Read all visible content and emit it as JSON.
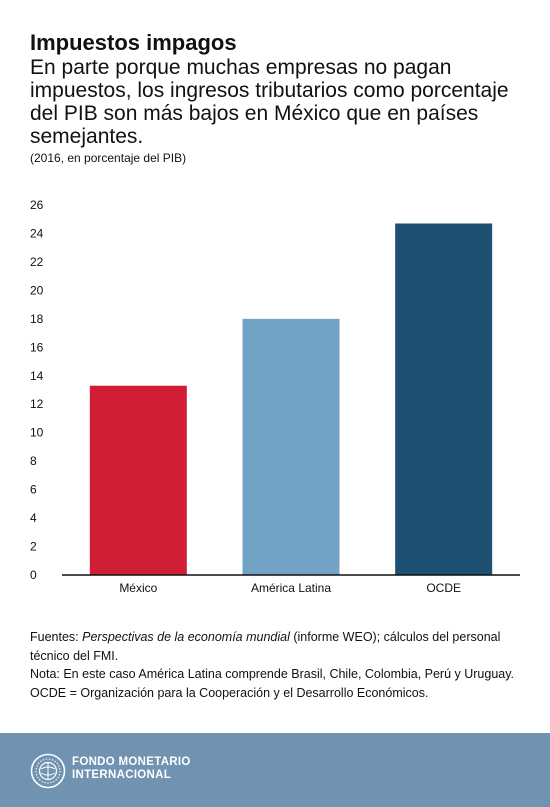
{
  "header": {
    "title": "Impuestos impagos",
    "subtitle": "En parte porque muchas empresas no pagan impuestos, los ingresos tributarios como porcentaje del PIB son más bajos en México que en países semejantes.",
    "units": "(2016, en porcentaje del PIB)"
  },
  "chart_data": {
    "type": "bar",
    "title": "",
    "xlabel": "",
    "ylabel": "",
    "categories": [
      "México",
      "América Latina",
      "OCDE"
    ],
    "values": [
      13.3,
      18.0,
      24.7
    ],
    "colors": [
      "#d01f35",
      "#73a3c4",
      "#1e5072"
    ],
    "ylim": [
      0,
      26
    ],
    "yticks": [
      0,
      2,
      4,
      6,
      8,
      10,
      12,
      14,
      16,
      18,
      20,
      22,
      24,
      26
    ],
    "grid": false,
    "legend": "none"
  },
  "notes": {
    "sources_label": "Fuentes: ",
    "sources_title": "Perspectivas de la economía mundial",
    "sources_rest": " (informe WEO); cálculos del personal técnico del FMI.",
    "note": "Nota: En este caso América Latina comprende Brasil, Chile, Colombia, Perú y Uruguay. OCDE = Organización para la Cooperación y el Desarrollo Económicos."
  },
  "footer": {
    "org_line1": "FONDO MONETARIO",
    "org_line2": "INTERNACIONAL",
    "logo_icon": "imf-seal-icon",
    "background": "#6f93b0"
  }
}
